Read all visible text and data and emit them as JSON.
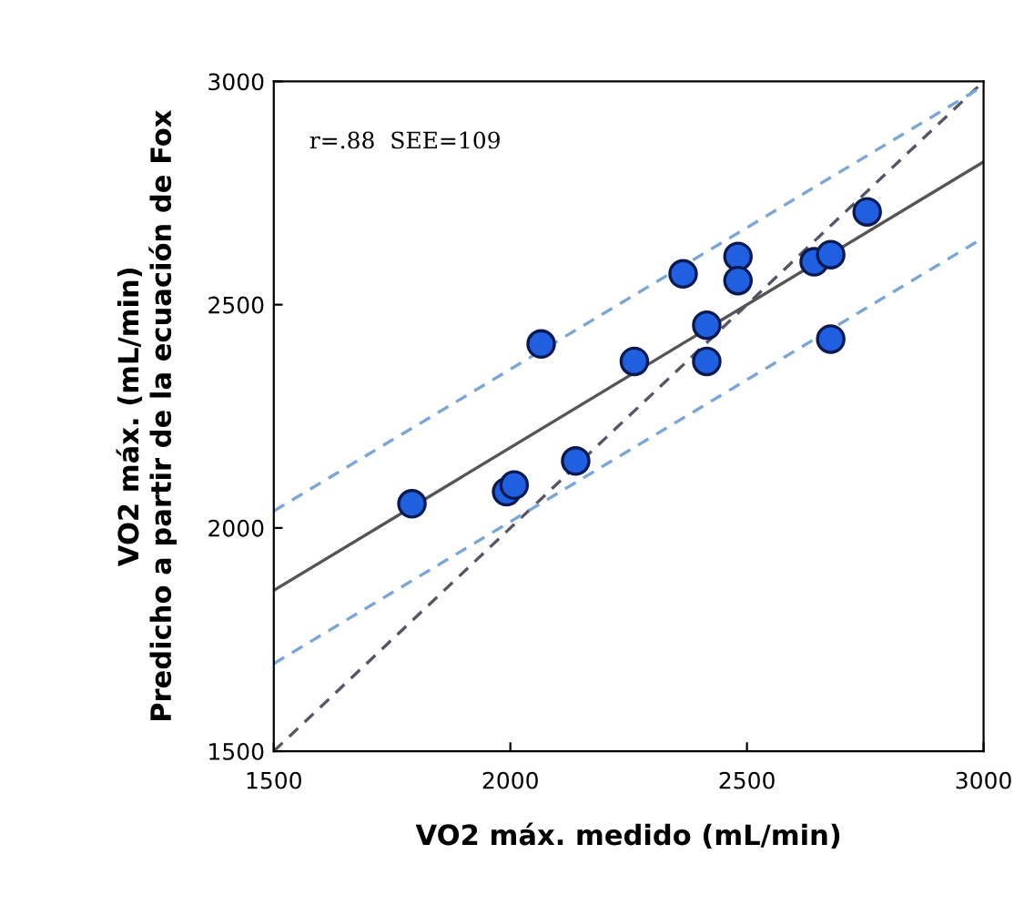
{
  "chart_data": {
    "type": "scatter",
    "xlabel": "VO2 máx. medido (mL/min)",
    "ylabel": "VO2 máx. (mL/min)\nPredicho a partir de la ecuación de Fox",
    "xlim": [
      1500,
      3000
    ],
    "ylim": [
      1500,
      3000
    ],
    "xticks": [
      1500,
      2000,
      2500,
      3000
    ],
    "yticks": [
      1500,
      2000,
      2500,
      3000
    ],
    "grid": false,
    "annotations": [
      "r=.88  SEE=109"
    ],
    "series": [
      {
        "color": "#1f5fe0",
        "marker": "circle",
        "x": [
          1792,
          1992,
          2008,
          2138,
          2065,
          2262,
          2365,
          2415,
          2415,
          2481,
          2481,
          2642,
          2677,
          2677,
          2754
        ],
        "values": [
          2054,
          2081,
          2096,
          2150,
          2412,
          2373,
          2569,
          2454,
          2373,
          2608,
          2554,
          2596,
          2612,
          2423,
          2708
        ]
      },
      {
        "type": "line",
        "color": "#555555",
        "line_style": "solid",
        "x": [
          1500,
          3000
        ],
        "values": [
          1860,
          2820
        ]
      },
      {
        "type": "line",
        "color": "#555566",
        "line_style": "dashed",
        "x": [
          1500,
          3000
        ],
        "values": [
          1500,
          3000
        ]
      },
      {
        "type": "line",
        "color": "#7aa6d6",
        "line_style": "dashed",
        "x": [
          1500,
          3000
        ],
        "values": [
          2038,
          2990
        ]
      },
      {
        "type": "line",
        "color": "#7aa6d6",
        "line_style": "dashed",
        "x": [
          1500,
          3000
        ],
        "values": [
          1696,
          2650
        ]
      }
    ]
  }
}
